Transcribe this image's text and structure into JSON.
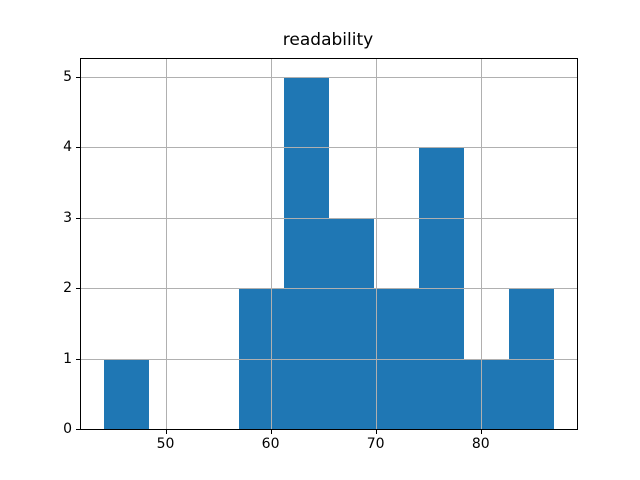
{
  "chart_data": {
    "type": "bar",
    "subtype": "histogram",
    "title": "readability",
    "xlabel": "",
    "ylabel": "",
    "bin_edges": [
      44.1,
      48.39,
      52.68,
      56.97,
      61.26,
      65.55,
      69.84,
      74.13,
      78.42,
      82.71,
      87.0
    ],
    "counts": [
      1,
      0,
      0,
      2,
      5,
      3,
      2,
      4,
      1,
      2
    ],
    "xlim": [
      41.96,
      89.15
    ],
    "ylim": [
      0,
      5.25
    ],
    "xticks": [
      50,
      60,
      70,
      80
    ],
    "yticks": [
      0,
      1,
      2,
      3,
      4,
      5
    ],
    "grid": true,
    "grid_over_bars": true,
    "legend": null,
    "bar_color": "#1f77b4",
    "grid_color": "#b0b0b0",
    "spine_color": "#000000",
    "background_color": "#ffffff",
    "text_color": "#000000"
  }
}
